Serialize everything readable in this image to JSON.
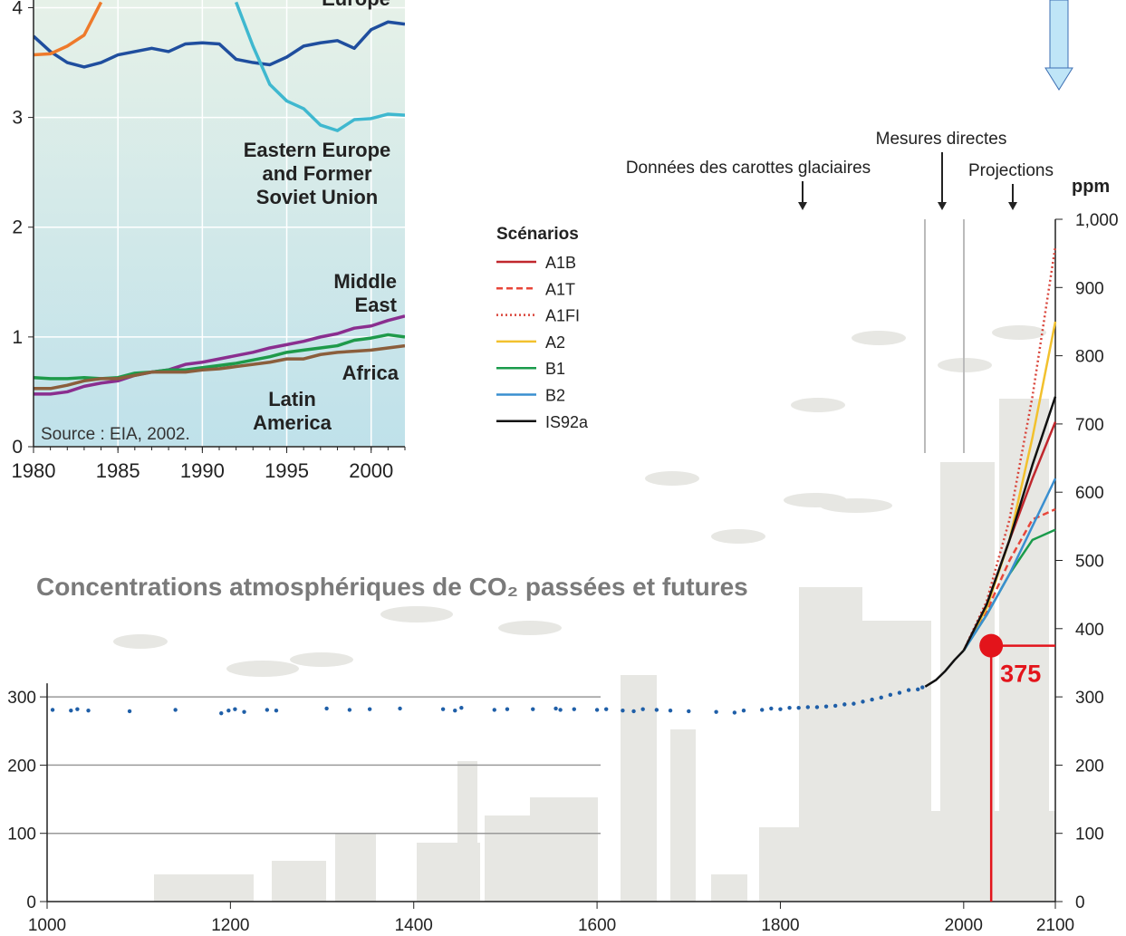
{
  "chart_data": [
    {
      "type": "line",
      "x": [
        1980,
        1981,
        1982,
        1983,
        1984,
        1985,
        1986,
        1987,
        1988,
        1989,
        1990,
        1991,
        1992,
        1993,
        1994,
        1995,
        1996,
        1997,
        1998,
        1999,
        2000,
        2001,
        2002
      ],
      "xlim": [
        1980,
        2002
      ],
      "xticks": [
        1980,
        1985,
        1990,
        1995,
        2000
      ],
      "ylim": [
        0,
        4.07
      ],
      "yticks": [
        0,
        1,
        2,
        3,
        4
      ],
      "grid": true,
      "annotations": [
        "Source : EIA, 2002."
      ],
      "series": [
        {
          "name": "Europe",
          "color": "#1f4e9e",
          "values": [
            3.74,
            3.6,
            3.5,
            3.46,
            3.5,
            3.57,
            3.6,
            3.63,
            3.6,
            3.67,
            3.68,
            3.67,
            3.53,
            3.5,
            3.48,
            3.55,
            3.65,
            3.68,
            3.7,
            3.63,
            3.8,
            3.87,
            3.85
          ]
        },
        {
          "name": "Eastern Europe and Former Soviet Union",
          "color": "#3fb8cf",
          "values": [
            null,
            null,
            null,
            null,
            null,
            null,
            null,
            null,
            null,
            null,
            null,
            null,
            4.05,
            3.65,
            3.3,
            3.15,
            3.08,
            2.93,
            2.88,
            2.98,
            2.99,
            3.03,
            3.02
          ]
        },
        {
          "color": "#ee7a2b",
          "values": [
            3.57,
            3.58,
            3.65,
            3.75,
            4.05,
            null,
            null,
            null,
            null,
            null,
            null,
            null,
            null,
            null,
            null,
            null,
            null,
            null,
            null,
            null,
            null,
            null,
            null
          ]
        },
        {
          "name": "Middle East",
          "color": "#8a2e8f",
          "values": [
            0.48,
            0.48,
            0.5,
            0.55,
            0.58,
            0.6,
            0.65,
            0.68,
            0.7,
            0.75,
            0.77,
            0.8,
            0.83,
            0.86,
            0.9,
            0.93,
            0.96,
            1.0,
            1.03,
            1.08,
            1.1,
            1.15,
            1.19
          ]
        },
        {
          "name": "Africa",
          "color": "#1e9a4a",
          "values": [
            0.63,
            0.62,
            0.62,
            0.63,
            0.62,
            0.63,
            0.67,
            0.68,
            0.7,
            0.7,
            0.72,
            0.74,
            0.76,
            0.79,
            0.82,
            0.86,
            0.88,
            0.9,
            0.92,
            0.97,
            0.99,
            1.02,
            1.0
          ]
        },
        {
          "name": "Latin America",
          "color": "#8b5e3c",
          "values": [
            0.53,
            0.53,
            0.56,
            0.6,
            0.62,
            0.62,
            0.65,
            0.68,
            0.68,
            0.68,
            0.7,
            0.71,
            0.73,
            0.75,
            0.77,
            0.8,
            0.8,
            0.84,
            0.86,
            0.87,
            0.88,
            0.9,
            0.92
          ]
        }
      ]
    },
    {
      "type": "line",
      "title": "Concentrations atmosphériques de CO₂ passées et futures",
      "xlim": [
        1000,
        2100
      ],
      "xticks": [
        1000,
        1200,
        1400,
        1600,
        1800,
        2000,
        2100
      ],
      "ylim": [
        0,
        1000
      ],
      "yticks": [
        0,
        100,
        200,
        300
      ],
      "y2lim": [
        0,
        1000
      ],
      "y2ticks": [
        0,
        100,
        200,
        300,
        400,
        500,
        600,
        700,
        800,
        900,
        {
          "value": 1000,
          "label": "1,000"
        }
      ],
      "y2label": "ppm",
      "grid": true,
      "legend_title": "Scénarios",
      "annotations": [
        "Données des carottes glaciaires",
        "Mesures directes",
        "Projections"
      ],
      "series": [
        {
          "color": "#1f5fa8",
          "mode": "markers",
          "x": [
            1006,
            1026,
            1033,
            1045,
            1090,
            1140,
            1190,
            1198,
            1205,
            1215,
            1240,
            1250,
            1305,
            1330,
            1352,
            1385,
            1432,
            1445,
            1452,
            1488,
            1502,
            1530,
            1555,
            1560,
            1575,
            1600,
            1610,
            1628,
            1640,
            1650,
            1665,
            1680,
            1700,
            1730,
            1750,
            1760,
            1780,
            1790,
            1800,
            1810,
            1820,
            1830,
            1840,
            1850,
            1860,
            1870,
            1880,
            1890,
            1900,
            1910,
            1920,
            1930,
            1940,
            1950,
            1955
          ],
          "values": [
            281,
            280,
            282,
            280,
            279,
            281,
            276,
            280,
            282,
            278,
            281,
            280,
            283,
            281,
            282,
            283,
            282,
            280,
            284,
            281,
            282,
            282,
            283,
            281,
            282,
            281,
            282,
            280,
            279,
            282,
            281,
            280,
            279,
            278,
            277,
            280,
            281,
            283,
            282,
            284,
            284,
            285,
            285,
            286,
            287,
            289,
            290,
            293,
            296,
            299,
            303,
            306,
            310,
            311,
            314
          ]
        },
        {
          "color": "#111111",
          "x": [
            1958,
            1970,
            1980,
            1990,
            2000
          ],
          "values": [
            315,
            325,
            338,
            354,
            368
          ]
        },
        {
          "name": "A1B",
          "color": "#c0272d",
          "dash": "solid",
          "x": [
            2000,
            2025,
            2050,
            2075,
            2100
          ],
          "values": [
            368,
            435,
            530,
            620,
            703
          ]
        },
        {
          "name": "A1T",
          "color": "#e8463a",
          "dash": "dashed",
          "x": [
            2000,
            2025,
            2050,
            2075,
            2100
          ],
          "values": [
            368,
            425,
            500,
            560,
            575
          ]
        },
        {
          "name": "A1FI",
          "color": "#d9453b",
          "dash": "dotted",
          "x": [
            2000,
            2025,
            2050,
            2075,
            2100
          ],
          "values": [
            368,
            440,
            560,
            740,
            960
          ]
        },
        {
          "name": "A2",
          "color": "#f2c12e",
          "dash": "solid",
          "x": [
            2000,
            2025,
            2050,
            2075,
            2100
          ],
          "values": [
            368,
            430,
            530,
            680,
            850
          ]
        },
        {
          "name": "B1",
          "color": "#1a9b4b",
          "dash": "solid",
          "x": [
            2000,
            2025,
            2050,
            2075,
            2100
          ],
          "values": [
            368,
            420,
            480,
            530,
            545
          ]
        },
        {
          "name": "B2",
          "color": "#3a8fd0",
          "dash": "solid",
          "x": [
            2000,
            2025,
            2050,
            2075,
            2100
          ],
          "values": [
            368,
            420,
            480,
            550,
            620
          ]
        },
        {
          "name": "IS92a",
          "color": "#111111",
          "dash": "solid",
          "x": [
            2000,
            2025,
            2050,
            2075,
            2100
          ],
          "values": [
            368,
            435,
            530,
            640,
            740
          ]
        },
        {
          "color": "#e3141b",
          "mode": "marker-label",
          "x": [
            2030
          ],
          "values": [
            375
          ]
        }
      ]
    }
  ]
}
